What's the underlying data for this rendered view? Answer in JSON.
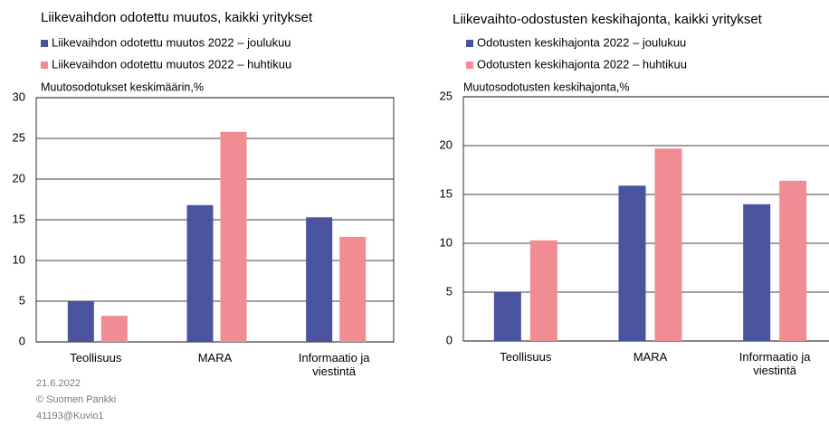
{
  "chart_data": [
    {
      "type": "bar",
      "title": "Liikevaihdon odotettu muutos, kaikki yritykset",
      "y_label": "Muutosodotukset keskimäärin,%",
      "categories": [
        "Teollisuus",
        "MARA",
        "Informaatio ja viestintä"
      ],
      "series": [
        {
          "name": "Liikevaihdon odotettu muutos 2022 – joulukuu",
          "color": "#4a539e",
          "values": [
            5.0,
            16.8,
            15.3
          ]
        },
        {
          "name": "Liikevaihdon odotettu muutos 2022 – huhtikuu",
          "color": "#f08c92",
          "values": [
            3.2,
            25.8,
            12.9
          ]
        }
      ],
      "ylim": [
        0,
        30
      ],
      "yticks": [
        0,
        5,
        10,
        15,
        20,
        25,
        30
      ],
      "grid": true
    },
    {
      "type": "bar",
      "title": "Liikevaihto-odostusten keskihajonta, kaikki yritykset",
      "y_label": "Muutosodotusten keskihajonta,%",
      "categories": [
        "Teollisuus",
        "MARA",
        "Informaatio ja viestintä"
      ],
      "series": [
        {
          "name": "Odotusten keskihajonta 2022 – joulukuu",
          "color": "#4a539e",
          "values": [
            5.0,
            15.9,
            14.0
          ]
        },
        {
          "name": "Odotusten keskihajonta 2022 – huhtikuu",
          "color": "#f08c92",
          "values": [
            10.3,
            19.7,
            16.4
          ]
        }
      ],
      "ylim": [
        0,
        25
      ],
      "yticks": [
        0,
        5,
        10,
        15,
        20,
        25
      ],
      "grid": true
    }
  ],
  "footer": [
    "21.6.2022",
    "© Suomen Pankki",
    "41193@Kuvio1"
  ]
}
